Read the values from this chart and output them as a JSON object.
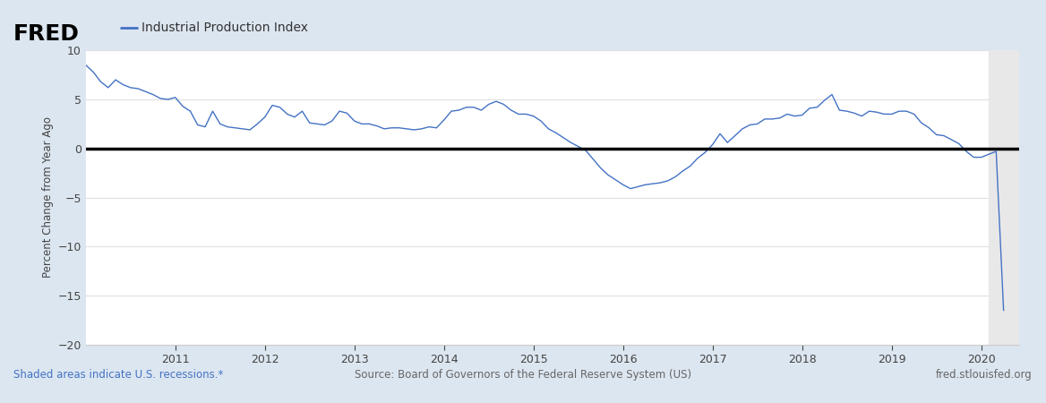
{
  "title": "Industrial Production Index",
  "ylabel": "Percent Change from Year Ago",
  "bg_color": "#dce6f0",
  "plot_bg_color": "#ffffff",
  "line_color": "#4472c4",
  "zero_line_color": "#000000",
  "grid_color": "#e0e0e0",
  "shaded_color": "#e8e8e8",
  "footer_text_left": "Shaded areas indicate U.S. recessions.*",
  "footer_text_center": "Source: Board of Governors of the Federal Reserve System (US)",
  "footer_text_right": "fred.stlouisfed.org",
  "footer_color": "#4472c4",
  "footer_center_color": "#666666",
  "ylim": [
    -20,
    10
  ],
  "yticks": [
    -20,
    -15,
    -10,
    -5,
    0,
    5,
    10
  ],
  "shade_start": 2020.083,
  "shade_end": 2020.42,
  "xlim_start": 2010.0,
  "xlim_end": 2020.42,
  "dates": [
    2010.0,
    2010.083,
    2010.167,
    2010.25,
    2010.333,
    2010.417,
    2010.5,
    2010.583,
    2010.667,
    2010.75,
    2010.833,
    2010.917,
    2011.0,
    2011.083,
    2011.167,
    2011.25,
    2011.333,
    2011.417,
    2011.5,
    2011.583,
    2011.667,
    2011.75,
    2011.833,
    2011.917,
    2012.0,
    2012.083,
    2012.167,
    2012.25,
    2012.333,
    2012.417,
    2012.5,
    2012.583,
    2012.667,
    2012.75,
    2012.833,
    2012.917,
    2013.0,
    2013.083,
    2013.167,
    2013.25,
    2013.333,
    2013.417,
    2013.5,
    2013.583,
    2013.667,
    2013.75,
    2013.833,
    2013.917,
    2014.0,
    2014.083,
    2014.167,
    2014.25,
    2014.333,
    2014.417,
    2014.5,
    2014.583,
    2014.667,
    2014.75,
    2014.833,
    2014.917,
    2015.0,
    2015.083,
    2015.167,
    2015.25,
    2015.333,
    2015.417,
    2015.5,
    2015.583,
    2015.667,
    2015.75,
    2015.833,
    2015.917,
    2016.0,
    2016.083,
    2016.167,
    2016.25,
    2016.333,
    2016.417,
    2016.5,
    2016.583,
    2016.667,
    2016.75,
    2016.833,
    2016.917,
    2017.0,
    2017.083,
    2017.167,
    2017.25,
    2017.333,
    2017.417,
    2017.5,
    2017.583,
    2017.667,
    2017.75,
    2017.833,
    2017.917,
    2018.0,
    2018.083,
    2018.167,
    2018.25,
    2018.333,
    2018.417,
    2018.5,
    2018.583,
    2018.667,
    2018.75,
    2018.833,
    2018.917,
    2019.0,
    2019.083,
    2019.167,
    2019.25,
    2019.333,
    2019.417,
    2019.5,
    2019.583,
    2019.667,
    2019.75,
    2019.833,
    2019.917,
    2020.0,
    2020.083,
    2020.167,
    2020.25
  ],
  "values": [
    8.5,
    7.8,
    6.8,
    6.2,
    7.0,
    6.5,
    6.2,
    6.1,
    5.8,
    5.5,
    5.1,
    5.0,
    5.2,
    4.3,
    3.8,
    2.4,
    2.2,
    3.8,
    2.5,
    2.2,
    2.1,
    2.0,
    1.9,
    2.5,
    3.2,
    4.4,
    4.2,
    3.5,
    3.2,
    3.8,
    2.6,
    2.5,
    2.4,
    2.8,
    3.8,
    3.6,
    2.8,
    2.5,
    2.5,
    2.3,
    2.0,
    2.1,
    2.1,
    2.0,
    1.9,
    2.0,
    2.2,
    2.1,
    2.9,
    3.8,
    3.9,
    4.2,
    4.2,
    3.9,
    4.5,
    4.8,
    4.5,
    3.9,
    3.5,
    3.5,
    3.3,
    2.8,
    2.0,
    1.6,
    1.1,
    0.6,
    0.2,
    -0.2,
    -1.1,
    -2.0,
    -2.7,
    -3.2,
    -3.7,
    -4.1,
    -3.9,
    -3.7,
    -3.6,
    -3.5,
    -3.3,
    -2.9,
    -2.3,
    -1.8,
    -1.0,
    -0.4,
    0.4,
    1.5,
    0.6,
    1.3,
    2.0,
    2.4,
    2.5,
    3.0,
    3.0,
    3.1,
    3.5,
    3.3,
    3.4,
    4.1,
    4.2,
    4.9,
    5.5,
    3.9,
    3.8,
    3.6,
    3.3,
    3.8,
    3.7,
    3.5,
    3.5,
    3.8,
    3.8,
    3.5,
    2.6,
    2.1,
    1.4,
    1.3,
    0.9,
    0.5,
    -0.3,
    -0.9,
    -0.9,
    -0.6,
    -0.3,
    -16.5
  ],
  "xtick_years": [
    2011,
    2012,
    2013,
    2014,
    2015,
    2016,
    2017,
    2018,
    2019,
    2020
  ]
}
